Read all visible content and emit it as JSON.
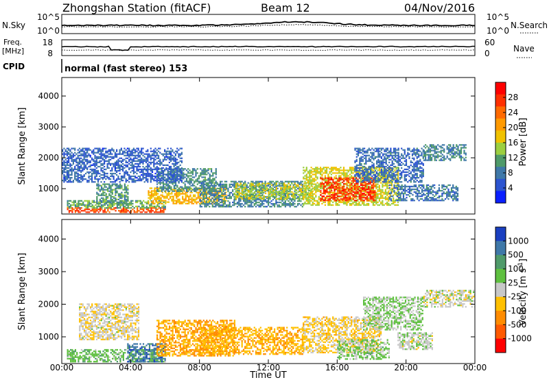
{
  "header": {
    "station": "Zhongshan Station (fitACF)",
    "beam": "Beam 12",
    "date": "04/Nov/2016",
    "cpid_label": "CPID",
    "cpid_value": "normal (fast stereo) 153"
  },
  "top_panels": {
    "nsky_label": "N.Sky",
    "nsky_ticks": [
      "10^5",
      "10^0"
    ],
    "nsearch_label": "N.Search",
    "nsearch_ticks": [
      "10^5",
      "10^0"
    ],
    "freq_label_1": "Freq.",
    "freq_label_2": "[MHz]",
    "freq_ticks": [
      "18",
      "8"
    ],
    "nave_label": "Nave",
    "nave_ticks": [
      "60",
      "0"
    ]
  },
  "axes": {
    "ylabel": "Slant Range [km]",
    "xlabel": "Time UT",
    "yticks": [
      "4000",
      "3000",
      "2000",
      "1000"
    ],
    "xticks": [
      "00:00",
      "04:00",
      "08:00",
      "12:00",
      "16:00",
      "20:00",
      "00:00"
    ]
  },
  "chart_data": [
    {
      "type": "heatmap",
      "parameter": "Power",
      "colorbar_label": "Power [dB]",
      "colorbar_ticks": [
        "28",
        "24",
        "20",
        "16",
        "12",
        "8",
        "4"
      ],
      "colorbar_colors": [
        "#ff0000",
        "#ff3000",
        "#ff6a00",
        "#ff9a00",
        "#f0c200",
        "#9ccf40",
        "#4f9a6a",
        "#3f78a8",
        "#2c54d0",
        "#0a1fff"
      ],
      "clim": [
        0,
        32
      ],
      "x_range_hours": [
        0,
        24
      ],
      "y_range_km": [
        180,
        4600
      ],
      "regions": [
        {
          "t": [
            0.3,
            6.0
          ],
          "r": [
            220,
            380
          ],
          "v": 26
        },
        {
          "t": [
            0.3,
            6.0
          ],
          "r": [
            360,
            600
          ],
          "v": 12
        },
        {
          "t": [
            2.0,
            3.8
          ],
          "r": [
            450,
            1150
          ],
          "v": 11
        },
        {
          "t": [
            5.0,
            9.5
          ],
          "r": [
            500,
            1000
          ],
          "v": 19
        },
        {
          "t": [
            5.5,
            9.0
          ],
          "r": [
            900,
            1650
          ],
          "v": 10
        },
        {
          "t": [
            8.0,
            14.0
          ],
          "r": [
            400,
            1250
          ],
          "v": 9
        },
        {
          "t": [
            10.0,
            14.5
          ],
          "r": [
            650,
            1150
          ],
          "v": 15
        },
        {
          "t": [
            14.0,
            19.5
          ],
          "r": [
            450,
            1700
          ],
          "v": 16
        },
        {
          "t": [
            15.0,
            18.2
          ],
          "r": [
            600,
            1350
          ],
          "v": 27
        },
        {
          "t": [
            17.0,
            21.0
          ],
          "r": [
            1200,
            2300
          ],
          "v": 7
        },
        {
          "t": [
            21.0,
            23.5
          ],
          "r": [
            1900,
            2400
          ],
          "v": 9
        },
        {
          "t": [
            19.0,
            23.0
          ],
          "r": [
            600,
            1100
          ],
          "v": 8
        },
        {
          "t": [
            0.0,
            7.0
          ],
          "r": [
            1200,
            2300
          ],
          "v": 6
        }
      ]
    },
    {
      "type": "heatmap",
      "parameter": "Velocity",
      "colorbar_label": "Velocity [m s-1]",
      "colorbar_label_main": "Velocity [m s",
      "colorbar_label_sup": "-1",
      "colorbar_label_end": "]",
      "colorbar_ticks": [
        "1000",
        "500",
        "100",
        "25",
        "-25",
        "-100",
        "-500",
        "-1000"
      ],
      "colorbar_colors": [
        "#1a3fc0",
        "#3f78a8",
        "#4f9a6a",
        "#5fc040",
        "#c8c8c8",
        "#ffc000",
        "#ff8c00",
        "#ff5a00",
        "#ff0000"
      ],
      "clim": [
        -1200,
        1200
      ],
      "x_range_hours": [
        0,
        24
      ],
      "y_range_km": [
        180,
        4600
      ],
      "regions": [
        {
          "t": [
            0.3,
            6.0
          ],
          "r": [
            220,
            600
          ],
          "v": 300
        },
        {
          "t": [
            3.8,
            6.0
          ],
          "r": [
            220,
            800
          ],
          "v": 800
        },
        {
          "t": [
            1.0,
            4.5
          ],
          "r": [
            900,
            2000
          ],
          "v": -60
        },
        {
          "t": [
            5.5,
            10.0
          ],
          "r": [
            400,
            1500
          ],
          "v": -400
        },
        {
          "t": [
            8.0,
            14.0
          ],
          "r": [
            450,
            1300
          ],
          "v": -350
        },
        {
          "t": [
            14.0,
            18.5
          ],
          "r": [
            500,
            1600
          ],
          "v": -200
        },
        {
          "t": [
            16.0,
            19.0
          ],
          "r": [
            300,
            900
          ],
          "v": 200
        },
        {
          "t": [
            19.5,
            21.5
          ],
          "r": [
            600,
            1100
          ],
          "v": 60
        },
        {
          "t": [
            21.0,
            24.0
          ],
          "r": [
            1900,
            2400
          ],
          "v": 0
        },
        {
          "t": [
            17.5,
            21.0
          ],
          "r": [
            1200,
            2200
          ],
          "v": 150
        }
      ]
    }
  ]
}
